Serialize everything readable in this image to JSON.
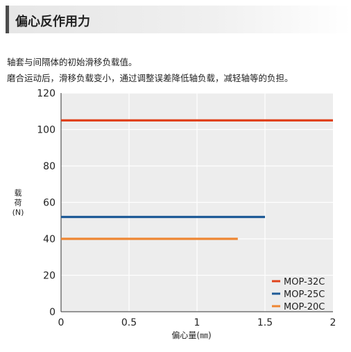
{
  "header": {
    "title": "偏心反作用力"
  },
  "description": {
    "line1": "轴套与间隔体的初始滑移负载值。",
    "line2": "磨合运动后，滑移负载变小，通过调整误差降低轴负载，减轻轴等的负担。"
  },
  "chart_data": {
    "type": "line",
    "xlabel": "偏心量(㎜)",
    "ylabel": [
      "载",
      "荷",
      "(N)"
    ],
    "xlim": [
      0,
      2
    ],
    "ylim": [
      0,
      120
    ],
    "x_ticks": [
      "0",
      "0.5",
      "1",
      "1.5",
      "2"
    ],
    "y_ticks": [
      "0",
      "20",
      "40",
      "60",
      "80",
      "100",
      "120"
    ],
    "grid": true,
    "legend_position": "bottom-right",
    "series": [
      {
        "name": "MOP-32C",
        "color": "#e0421b",
        "x": [
          0,
          2
        ],
        "y": [
          105,
          105
        ]
      },
      {
        "name": "MOP-25C",
        "color": "#1f5b97",
        "x": [
          0,
          1.5
        ],
        "y": [
          52,
          52
        ]
      },
      {
        "name": "MOP-20C",
        "color": "#ee8632",
        "x": [
          0,
          1.3
        ],
        "y": [
          40,
          40
        ]
      }
    ]
  }
}
